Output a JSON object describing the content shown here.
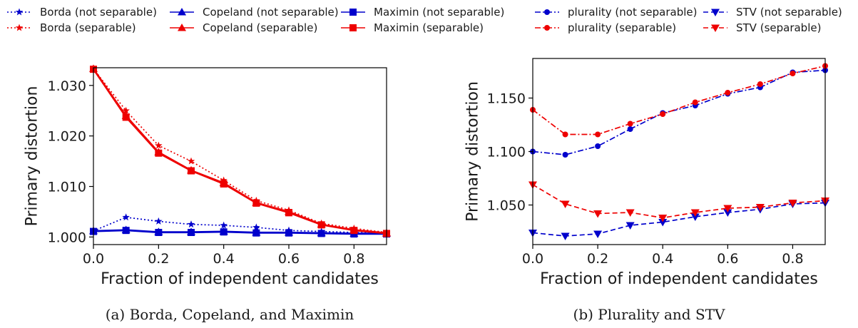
{
  "legend": [
    {
      "label": "Borda (not separable)",
      "color": "#0000cc",
      "marker": "star",
      "dash": "dotted"
    },
    {
      "label": "Borda (separable)",
      "color": "#ee0000",
      "marker": "star",
      "dash": "dotted"
    },
    {
      "label": "Copeland (not separable)",
      "color": "#0000cc",
      "marker": "triangle-up",
      "dash": "solid"
    },
    {
      "label": "Copeland (separable)",
      "color": "#ee0000",
      "marker": "triangle-up",
      "dash": "solid"
    },
    {
      "label": "Maximin (not separable)",
      "color": "#0000cc",
      "marker": "square",
      "dash": "solid"
    },
    {
      "label": "Maximin (separable)",
      "color": "#ee0000",
      "marker": "square",
      "dash": "solid"
    },
    {
      "label": "plurality (not separable)",
      "color": "#0000cc",
      "marker": "circle",
      "dash": "dashdot"
    },
    {
      "label": "plurality (separable)",
      "color": "#ee0000",
      "marker": "circle",
      "dash": "dashdot"
    },
    {
      "label": "STV (not separable)",
      "color": "#0000cc",
      "marker": "triangle-down",
      "dash": "dashed"
    },
    {
      "label": "STV (separable)",
      "color": "#ee0000",
      "marker": "triangle-down",
      "dash": "dashed"
    }
  ],
  "chart_data": [
    {
      "type": "line",
      "caption": "(a) Borda, Copeland, and Maximin",
      "xlabel": "Fraction of independent candidates",
      "ylabel": "Primary distortion",
      "xlim": [
        0.0,
        0.9
      ],
      "ylim": [
        0.9985,
        1.0335
      ],
      "xticks": [
        0.0,
        0.2,
        0.4,
        0.6,
        0.8
      ],
      "xtick_labels": [
        "0.0",
        "0.2",
        "0.4",
        "0.6",
        "0.8"
      ],
      "yticks": [
        1.0,
        1.01,
        1.02,
        1.03
      ],
      "ytick_labels": [
        "1.000",
        "1.010",
        "1.020",
        "1.030"
      ],
      "x": [
        0.0,
        0.1,
        0.2,
        0.3,
        0.4,
        0.5,
        0.6,
        0.7,
        0.8,
        0.9
      ],
      "series": [
        {
          "name": "Borda (not separable)",
          "color": "#0000cc",
          "marker": "star",
          "dash": "dotted",
          "values": [
            1.0012,
            1.0039,
            1.0031,
            1.0025,
            1.0023,
            1.0019,
            1.0013,
            1.0011,
            1.0009,
            1.0008
          ]
        },
        {
          "name": "Copeland (not separable)",
          "color": "#0000cc",
          "marker": "triangle-up",
          "dash": "solid",
          "values": [
            1.0012,
            1.0014,
            1.001,
            1.001,
            1.0011,
            1.0009,
            1.0009,
            1.0008,
            1.0007,
            1.0007
          ]
        },
        {
          "name": "Maximin (not separable)",
          "color": "#0000cc",
          "marker": "square",
          "dash": "solid",
          "values": [
            1.0011,
            1.0013,
            1.0009,
            1.0009,
            1.001,
            1.0008,
            1.0008,
            1.0007,
            1.0006,
            1.0006
          ]
        },
        {
          "name": "Borda (separable)",
          "color": "#ee0000",
          "marker": "star",
          "dash": "dotted",
          "values": [
            1.0333,
            1.025,
            1.0181,
            1.015,
            1.0112,
            1.0072,
            1.0053,
            1.0027,
            1.0017,
            1.0009
          ]
        },
        {
          "name": "Copeland (separable)",
          "color": "#ee0000",
          "marker": "triangle-up",
          "dash": "solid",
          "values": [
            1.0333,
            1.024,
            1.0168,
            1.0132,
            1.0107,
            1.0068,
            1.005,
            1.0025,
            1.0014,
            1.0008
          ]
        },
        {
          "name": "Maximin (separable)",
          "color": "#ee0000",
          "marker": "square",
          "dash": "solid",
          "values": [
            1.0332,
            1.0237,
            1.0166,
            1.0131,
            1.0105,
            1.0067,
            1.0048,
            1.0024,
            1.0013,
            1.0007
          ]
        }
      ]
    },
    {
      "type": "line",
      "caption": "(b) Plurality and STV",
      "xlabel": "Fraction of independent candidates",
      "ylabel": "Primary distortion",
      "xlim": [
        0.0,
        0.9
      ],
      "ylim": [
        1.013,
        1.187
      ],
      "xticks": [
        0.0,
        0.2,
        0.4,
        0.6,
        0.8
      ],
      "xtick_labels": [
        "0.0",
        "0.2",
        "0.4",
        "0.6",
        "0.8"
      ],
      "yticks": [
        1.05,
        1.1,
        1.15
      ],
      "ytick_labels": [
        "1.050",
        "1.100",
        "1.150"
      ],
      "x": [
        0.0,
        0.1,
        0.2,
        0.3,
        0.4,
        0.5,
        0.6,
        0.7,
        0.8,
        0.9
      ],
      "series": [
        {
          "name": "plurality (not separable)",
          "color": "#0000cc",
          "marker": "circle",
          "dash": "dashdot",
          "values": [
            1.1,
            1.097,
            1.105,
            1.121,
            1.136,
            1.143,
            1.154,
            1.16,
            1.174,
            1.176
          ]
        },
        {
          "name": "plurality (separable)",
          "color": "#ee0000",
          "marker": "circle",
          "dash": "dashdot",
          "values": [
            1.139,
            1.116,
            1.116,
            1.126,
            1.135,
            1.146,
            1.155,
            1.163,
            1.173,
            1.18
          ]
        },
        {
          "name": "STV (not separable)",
          "color": "#0000cc",
          "marker": "triangle-down",
          "dash": "dashed",
          "values": [
            1.024,
            1.021,
            1.023,
            1.031,
            1.034,
            1.039,
            1.043,
            1.046,
            1.051,
            1.052
          ]
        },
        {
          "name": "STV (separable)",
          "color": "#ee0000",
          "marker": "triangle-down",
          "dash": "dashed",
          "values": [
            1.069,
            1.051,
            1.042,
            1.043,
            1.038,
            1.043,
            1.047,
            1.048,
            1.052,
            1.054
          ]
        }
      ]
    }
  ]
}
